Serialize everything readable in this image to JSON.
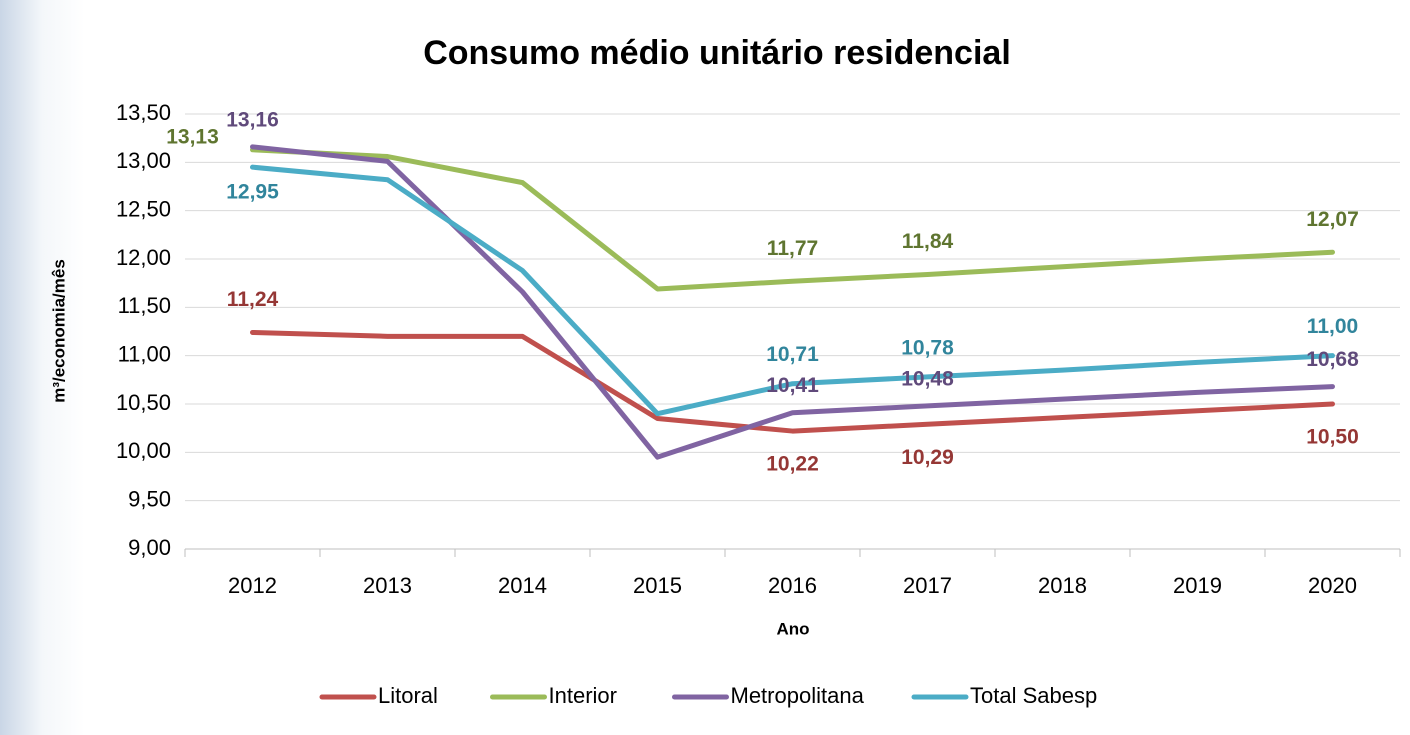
{
  "chart_data": {
    "type": "line",
    "title": "Consumo médio unitário residencial",
    "x_label": "Ano",
    "y_label": "m³/economia/mês",
    "categories": [
      "2012",
      "2013",
      "2014",
      "2015",
      "2016",
      "2017",
      "2018",
      "2019",
      "2020"
    ],
    "series": [
      {
        "name": "Litoral",
        "color": "#c0504d",
        "values": [
          11.24,
          11.2,
          11.2,
          10.35,
          10.22,
          10.29,
          10.36,
          10.43,
          10.5
        ],
        "value_labels": [
          "11,24",
          null,
          null,
          null,
          "10,22",
          "10,29",
          null,
          null,
          "10,50"
        ]
      },
      {
        "name": "Interior",
        "color": "#9bbb59",
        "values": [
          13.13,
          13.06,
          12.79,
          11.69,
          11.77,
          11.84,
          11.92,
          12.0,
          12.07
        ],
        "value_labels": [
          "13,13",
          null,
          null,
          null,
          "11,77",
          "11,84",
          null,
          null,
          "12,07"
        ]
      },
      {
        "name": "Metropolitana",
        "color": "#8064a2",
        "values": [
          13.16,
          13.01,
          11.66,
          9.95,
          10.41,
          10.48,
          10.55,
          10.62,
          10.68
        ],
        "value_labels": [
          "13,16",
          null,
          null,
          null,
          "10,41",
          "10,48",
          null,
          null,
          "10,68"
        ]
      },
      {
        "name": "Total Sabesp",
        "color": "#4bacc6",
        "values": [
          12.95,
          12.82,
          11.88,
          10.4,
          10.71,
          10.78,
          10.85,
          10.93,
          11.0
        ],
        "value_labels": [
          "12,95",
          null,
          null,
          null,
          "10,71",
          "10,78",
          null,
          null,
          "11,00"
        ]
      }
    ],
    "ylim": [
      9.0,
      13.5
    ],
    "yticks": [
      {
        "value": 9.0,
        "label": "9,00"
      },
      {
        "value": 9.5,
        "label": "9,50"
      },
      {
        "value": 10.0,
        "label": "10,00"
      },
      {
        "value": 10.5,
        "label": "10,50"
      },
      {
        "value": 11.0,
        "label": "11,00"
      },
      {
        "value": 11.5,
        "label": "11,50"
      },
      {
        "value": 12.0,
        "label": "12,00"
      },
      {
        "value": 12.5,
        "label": "12,50"
      },
      {
        "value": 13.0,
        "label": "13,00"
      },
      {
        "value": 13.5,
        "label": "13,50"
      }
    ],
    "grid": true,
    "legend": "bottom"
  }
}
